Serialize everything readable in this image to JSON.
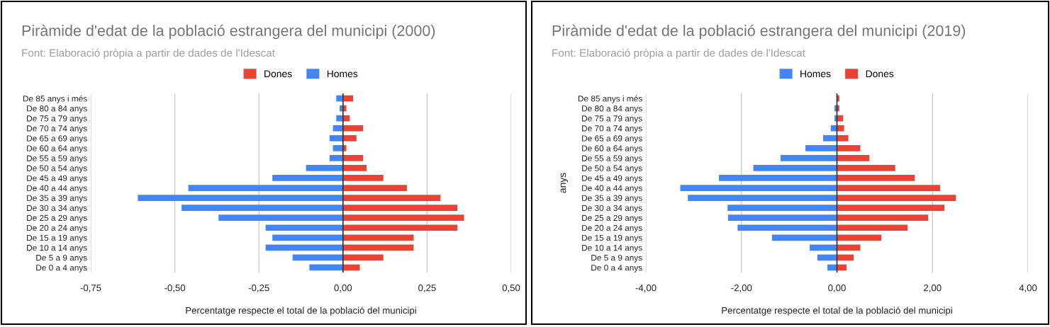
{
  "chart_data": [
    {
      "type": "bar",
      "orientation": "horizontal",
      "title": "Piràmide d'edat de la població estrangera del municipi (2000)",
      "subtitle": "Font: Elaboració pròpia a partir de dades de l'Idescat",
      "xlabel": "Percentatge respecte el total de la població del municipi",
      "categories": [
        "De 85 anys i més",
        "De 80 a 84 anys",
        "De 75 a 79 anys",
        "De 70 a 74 anys",
        "De 65 a 69 anys",
        "De 60 a 64 anys",
        "De 55 a 59 anys",
        "De 50 a 54 anys",
        "De 45 a 49 anys",
        "De 40 a 44 anys",
        "De 35 a 39 anys",
        "De 30 a 34 anys",
        "De 25 a 29 anys",
        "De 20 a 24 anys",
        "De 15 a 19 anys",
        "De 10 a 14 anys",
        "De 5 a 9 anys",
        "De 0 a 4 anys"
      ],
      "series": [
        {
          "name": "Dones",
          "color": "#ea4335",
          "values": [
            0.03,
            0.01,
            0.02,
            0.06,
            0.04,
            0.01,
            0.06,
            0.07,
            0.12,
            0.19,
            0.29,
            0.34,
            0.36,
            0.34,
            0.21,
            0.21,
            0.12,
            0.05
          ]
        },
        {
          "name": "Homes",
          "color": "#4285f4",
          "values": [
            -0.02,
            -0.01,
            -0.02,
            -0.03,
            -0.04,
            -0.03,
            -0.04,
            -0.11,
            -0.21,
            -0.46,
            -0.61,
            -0.48,
            -0.37,
            -0.23,
            -0.21,
            -0.23,
            -0.15,
            -0.1
          ]
        }
      ],
      "xlim": [
        -0.75,
        0.5
      ],
      "xticks": [
        {
          "value": -0.75,
          "label": "-0,75"
        },
        {
          "value": -0.5,
          "label": "-0,50"
        },
        {
          "value": -0.25,
          "label": "-0,25"
        },
        {
          "value": 0,
          "label": "0,00"
        },
        {
          "value": 0.25,
          "label": "0,25"
        },
        {
          "value": 0.5,
          "label": "0,50"
        }
      ],
      "grid": "x",
      "legend": "top",
      "stacked": true
    },
    {
      "type": "bar",
      "orientation": "horizontal",
      "title": "Piràmide d'edat de la població estrangera del municipi (2019)",
      "subtitle": "Font: Elaboració pròpia a partir de dades de l'Idescat",
      "xlabel": "Percentatge respecte el total de la població del municipi",
      "ylabel": "anys",
      "categories": [
        "De 85 anys i més",
        "De 80 a 84 anys",
        "De 75 a 79 anys",
        "De 70 a 74 anys",
        "De 65 a 69 anys",
        "De 60 a 64 anys",
        "De 55 a 59 anys",
        "De 50 a 54 anys",
        "De 45 a 49 anys",
        "De 40 a 44 anys",
        "De 35 a 39 anys",
        "De 30 a 34 anys",
        "De 25 a 29 anys",
        "De 20 a 24 anys",
        "De 15 a 19 anys",
        "De 10 a 14 anys",
        "De 5 a 9 anys",
        "De 0 a 4 anys"
      ],
      "series": [
        {
          "name": "Homes",
          "color": "#4285f4",
          "values": [
            null,
            -0.05,
            -0.05,
            -0.13,
            -0.29,
            -0.66,
            -1.18,
            -1.75,
            -2.47,
            -3.28,
            -3.12,
            -2.29,
            -2.28,
            -2.08,
            -1.36,
            -0.57,
            -0.41,
            -0.2
          ]
        },
        {
          "name": "Dones",
          "color": "#ea4335",
          "values": [
            0.05,
            0.05,
            0.13,
            0.15,
            0.24,
            0.49,
            0.68,
            1.22,
            1.63,
            2.16,
            2.49,
            2.25,
            1.91,
            1.48,
            0.93,
            0.49,
            0.35,
            0.2
          ]
        }
      ],
      "xlim": [
        -4,
        4
      ],
      "xticks": [
        {
          "value": -4,
          "label": "-4,00"
        },
        {
          "value": -2,
          "label": "-2,00"
        },
        {
          "value": 0,
          "label": "0,00"
        },
        {
          "value": 2,
          "label": "2,00"
        },
        {
          "value": 4,
          "label": "4,00"
        }
      ],
      "grid": "x",
      "legend": "top",
      "stacked": true
    }
  ]
}
